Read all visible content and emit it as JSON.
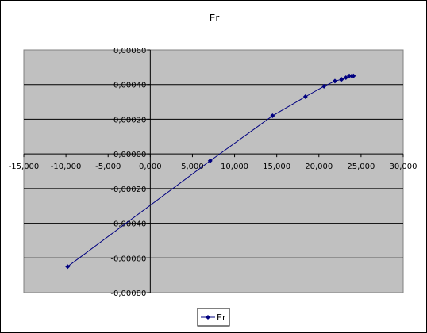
{
  "chart_data": {
    "type": "scatter",
    "title": "Er",
    "xlabel": "",
    "ylabel": "",
    "xlim": [
      -15000,
      30000
    ],
    "ylim": [
      -0.0008,
      0.0006
    ],
    "x_ticks": [
      -15000,
      -10000,
      -5000,
      0,
      5000,
      10000,
      15000,
      20000,
      25000,
      30000
    ],
    "x_tick_labels": [
      "-15,000",
      "-10,000",
      "-5,000",
      "0,000",
      "5,000",
      "10,000",
      "15,000",
      "20,000",
      "25,000",
      "30,000"
    ],
    "y_ticks": [
      0.0006,
      0.0004,
      0.0002,
      0.0,
      -0.0002,
      -0.0004,
      -0.0006,
      -0.0008
    ],
    "y_tick_labels": [
      "0,00060",
      "0,00040",
      "0,00020",
      "0,00000",
      "-0,00020",
      "-0,00040",
      "-0,00060",
      "-0,00080"
    ],
    "grid": "horizontal",
    "legend": "bottom",
    "series": [
      {
        "name": "Er",
        "color": "#000080",
        "x": [
          -9800,
          7100,
          14500,
          18400,
          20600,
          21900,
          22700,
          23200,
          23600,
          23900,
          24100
        ],
        "y": [
          -0.00065,
          -4e-05,
          0.00022,
          0.00033,
          0.00039,
          0.00042,
          0.00043,
          0.00044,
          0.00045,
          0.00045,
          0.00045
        ]
      }
    ]
  },
  "colors": {
    "plot_background": "#c0c0c0",
    "gridline": "#000000",
    "series": "#000080"
  }
}
